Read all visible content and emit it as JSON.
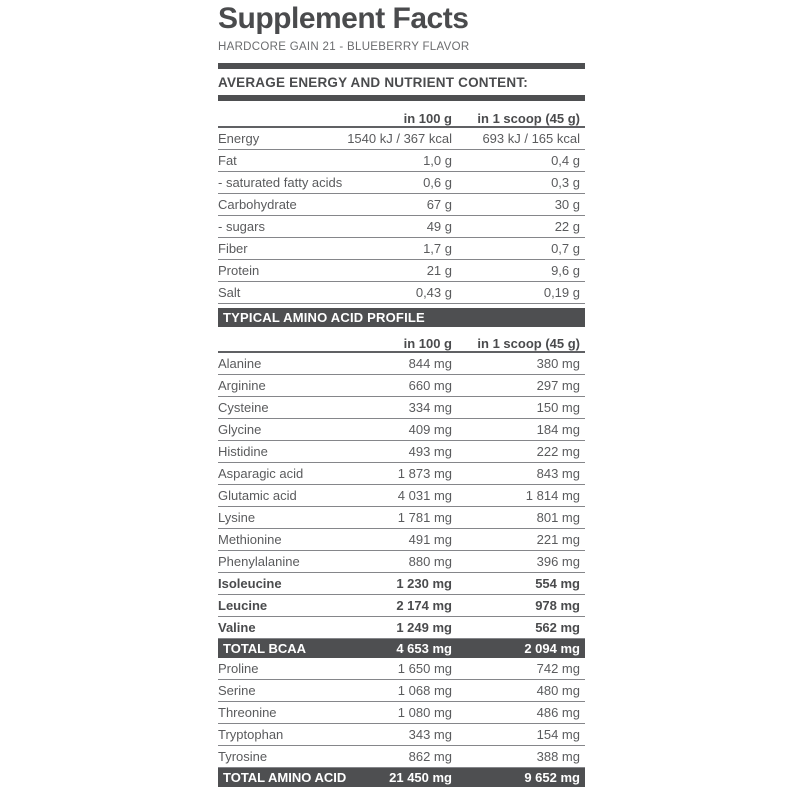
{
  "header": {
    "title": "Supplement Facts",
    "subtitle": "HARDCORE GAIN 21 - BLUEBERRY FLAVOR"
  },
  "columns": {
    "per_100g": "in 100 g",
    "per_scoop": "in 1 scoop (45 g)"
  },
  "nutrition": {
    "section_title": "AVERAGE ENERGY AND NUTRIENT CONTENT:",
    "rows": [
      {
        "label": "Energy",
        "per100": "1540 kJ / 367 kcal",
        "perScoop": "693 kJ / 165 kcal"
      },
      {
        "label": "Fat",
        "per100": "1,0 g",
        "perScoop": "0,4 g"
      },
      {
        "label": "- saturated fatty acids",
        "per100": "0,6 g",
        "perScoop": "0,3 g"
      },
      {
        "label": "Carbohydrate",
        "per100": "67 g",
        "perScoop": "30 g"
      },
      {
        "label": "- sugars",
        "per100": "49 g",
        "perScoop": "22 g"
      },
      {
        "label": "Fiber",
        "per100": "1,7 g",
        "perScoop": "0,7 g"
      },
      {
        "label": "Protein",
        "per100": "21 g",
        "perScoop": "9,6 g"
      },
      {
        "label": "Salt",
        "per100": "0,43 g",
        "perScoop": "0,19 g"
      }
    ]
  },
  "amino": {
    "section_title": "TYPICAL AMINO ACID PROFILE",
    "rows": [
      {
        "label": "Alanine",
        "per100": "844 mg",
        "perScoop": "380 mg"
      },
      {
        "label": "Arginine",
        "per100": "660 mg",
        "perScoop": "297 mg"
      },
      {
        "label": "Cysteine",
        "per100": "334 mg",
        "perScoop": "150 mg"
      },
      {
        "label": "Glycine",
        "per100": "409 mg",
        "perScoop": "184 mg"
      },
      {
        "label": "Histidine",
        "per100": "493 mg",
        "perScoop": "222 mg"
      },
      {
        "label": "Asparagic acid",
        "per100": "1 873 mg",
        "perScoop": "843 mg"
      },
      {
        "label": "Glutamic acid",
        "per100": "4 031 mg",
        "perScoop": "1 814 mg"
      },
      {
        "label": "Lysine",
        "per100": "1 781 mg",
        "perScoop": "801 mg"
      },
      {
        "label": "Methionine",
        "per100": "491 mg",
        "perScoop": "221 mg"
      },
      {
        "label": "Phenylalanine",
        "per100": "880 mg",
        "perScoop": "396 mg"
      },
      {
        "label": "Isoleucine",
        "per100": "1 230 mg",
        "perScoop": "554 mg",
        "bold": true
      },
      {
        "label": "Leucine",
        "per100": "2 174 mg",
        "perScoop": "978 mg",
        "bold": true
      },
      {
        "label": "Valine",
        "per100": "1 249 mg",
        "perScoop": "562 mg",
        "bold": true
      },
      {
        "label": "TOTAL BCAA",
        "per100": "4 653 mg",
        "perScoop": "2 094 mg",
        "total": true
      },
      {
        "label": "Proline",
        "per100": "1 650 mg",
        "perScoop": "742 mg"
      },
      {
        "label": "Serine",
        "per100": "1 068 mg",
        "perScoop": "480 mg"
      },
      {
        "label": "Threonine",
        "per100": "1 080 mg",
        "perScoop": "486 mg"
      },
      {
        "label": "Tryptophan",
        "per100": "343 mg",
        "perScoop": "154 mg"
      },
      {
        "label": "Tyrosine",
        "per100": "862 mg",
        "perScoop": "388 mg"
      },
      {
        "label": "TOTAL AMINO ACID",
        "per100": "21 450 mg",
        "perScoop": "9 652 mg",
        "total": true
      }
    ]
  },
  "colors": {
    "bar_dark": "#4e4f51",
    "text": "#5a5b5d",
    "text_dark": "#4a4b4d",
    "text_mid": "#6b6c6e",
    "line": "#85868a",
    "line_strong": "#606164"
  }
}
